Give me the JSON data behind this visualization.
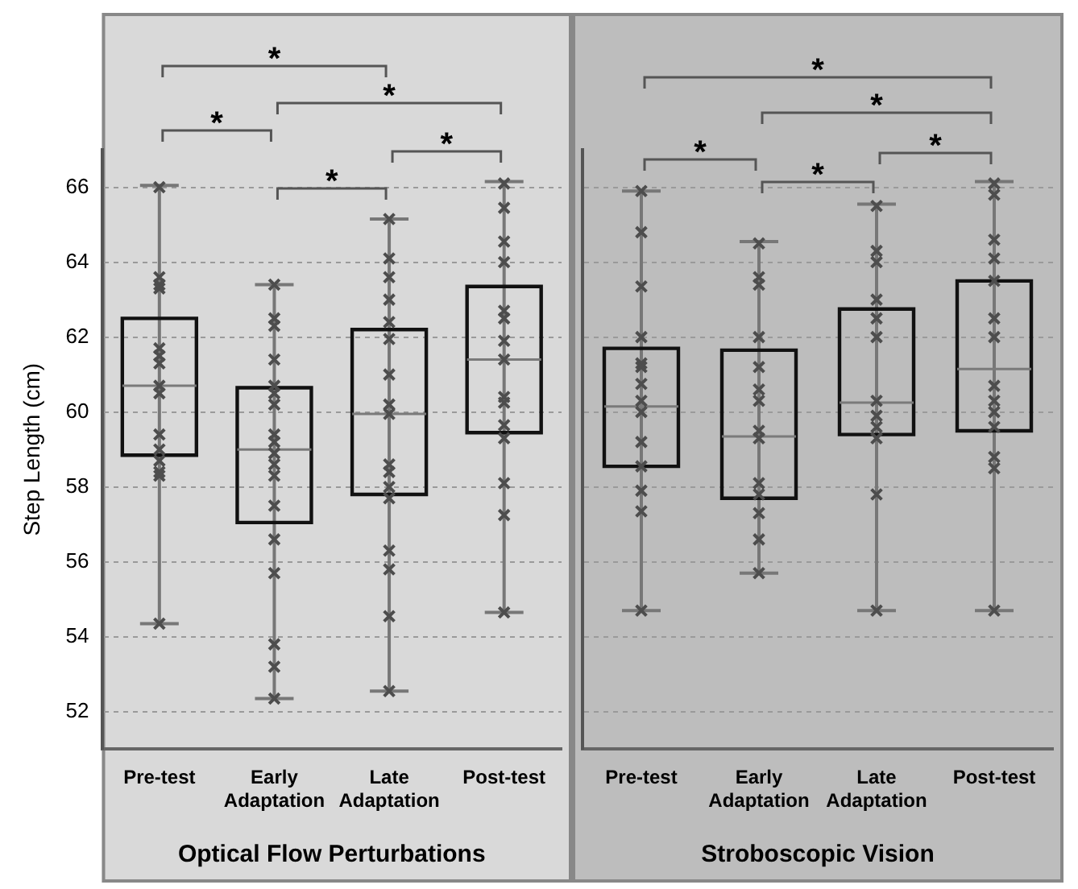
{
  "chart_data": [
    {
      "type": "box",
      "categories": [
        "Pre-test",
        "Early Adaptation",
        "Late Adaptation",
        "Post-test"
      ],
      "xlabel": "Optical Flow Perturbations",
      "ylabel": "Step Length (cm)",
      "ylim": [
        51,
        67
      ],
      "yticks": [
        52,
        54,
        56,
        58,
        60,
        62,
        64,
        66
      ],
      "grid": "y",
      "marker": "cross",
      "annotations": [
        "*",
        "*",
        "*",
        "*",
        "*"
      ],
      "boxes": [
        {
          "low": 54.35,
          "q1": 58.85,
          "median": 60.7,
          "q3": 62.5,
          "high": 66.05
        },
        {
          "low": 52.35,
          "q1": 57.05,
          "median": 59.0,
          "q3": 60.65,
          "high": 63.4
        },
        {
          "low": 52.55,
          "q1": 57.8,
          "median": 59.95,
          "q3": 62.2,
          "high": 65.15
        },
        {
          "low": 54.65,
          "q1": 59.45,
          "median": 61.4,
          "q3": 63.35,
          "high": 66.15
        }
      ],
      "series": [
        {
          "type": "scatter",
          "color": "#4d4d4d",
          "x": [
            "Pre-test",
            "Pre-test",
            "Pre-test",
            "Pre-test",
            "Pre-test",
            "Pre-test",
            "Pre-test",
            "Pre-test",
            "Pre-test",
            "Pre-test",
            "Pre-test",
            "Pre-test",
            "Pre-test",
            "Pre-test",
            "Pre-test",
            "Early Adaptation",
            "Early Adaptation",
            "Early Adaptation",
            "Early Adaptation",
            "Early Adaptation",
            "Early Adaptation",
            "Early Adaptation",
            "Early Adaptation",
            "Early Adaptation",
            "Early Adaptation",
            "Early Adaptation",
            "Early Adaptation",
            "Early Adaptation",
            "Early Adaptation",
            "Early Adaptation",
            "Early Adaptation",
            "Early Adaptation",
            "Early Adaptation",
            "Late Adaptation",
            "Late Adaptation",
            "Late Adaptation",
            "Late Adaptation",
            "Late Adaptation",
            "Late Adaptation",
            "Late Adaptation",
            "Late Adaptation",
            "Late Adaptation",
            "Late Adaptation",
            "Late Adaptation",
            "Late Adaptation",
            "Late Adaptation",
            "Late Adaptation",
            "Late Adaptation",
            "Late Adaptation",
            "Late Adaptation",
            "Post-test",
            "Post-test",
            "Post-test",
            "Post-test",
            "Post-test",
            "Post-test",
            "Post-test",
            "Post-test",
            "Post-test",
            "Post-test",
            "Post-test",
            "Post-test",
            "Post-test",
            "Post-test",
            "Post-test"
          ],
          "values": [
            66.0,
            63.6,
            63.4,
            63.3,
            61.7,
            61.5,
            61.3,
            60.7,
            60.5,
            59.4,
            59.0,
            58.7,
            58.4,
            58.3,
            54.35,
            63.4,
            62.5,
            62.3,
            61.4,
            60.7,
            60.5,
            60.2,
            59.4,
            59.2,
            58.9,
            58.6,
            58.3,
            57.5,
            56.6,
            55.7,
            53.8,
            53.2,
            52.35,
            65.15,
            64.1,
            63.6,
            63.0,
            62.4,
            61.95,
            61.0,
            60.2,
            59.95,
            58.6,
            58.4,
            58.0,
            57.7,
            56.3,
            55.8,
            54.55,
            52.55,
            66.1,
            65.45,
            64.55,
            64.0,
            62.7,
            62.5,
            61.9,
            61.4,
            60.4,
            60.25,
            59.65,
            59.3,
            58.1,
            57.25,
            54.65
          ]
        }
      ]
    },
    {
      "type": "box",
      "categories": [
        "Pre-test",
        "Early Adaptation",
        "Late Adaptation",
        "Post-test"
      ],
      "xlabel": "Stroboscopic Vision",
      "ylim": [
        51,
        67
      ],
      "yticks": [
        52,
        54,
        56,
        58,
        60,
        62,
        64,
        66
      ],
      "tick_labels": "x",
      "grid": "y",
      "marker": "cross",
      "annotations": [
        "*",
        "*",
        "*",
        "*",
        "*"
      ],
      "boxes": [
        {
          "low": 54.7,
          "q1": 58.55,
          "median": 60.15,
          "q3": 61.7,
          "high": 65.9
        },
        {
          "low": 55.7,
          "q1": 57.7,
          "median": 59.35,
          "q3": 61.65,
          "high": 64.55
        },
        {
          "low": 54.7,
          "q1": 59.4,
          "median": 60.25,
          "q3": 62.75,
          "high": 65.55
        },
        {
          "low": 54.7,
          "q1": 59.5,
          "median": 61.15,
          "q3": 63.5,
          "high": 66.15
        }
      ],
      "series": [
        {
          "type": "scatter",
          "color": "#4d4d4d",
          "x": [
            "Pre-test",
            "Pre-test",
            "Pre-test",
            "Pre-test",
            "Pre-test",
            "Pre-test",
            "Pre-test",
            "Pre-test",
            "Pre-test",
            "Pre-test",
            "Pre-test",
            "Pre-test",
            "Pre-test",
            "Pre-test",
            "Early Adaptation",
            "Early Adaptation",
            "Early Adaptation",
            "Early Adaptation",
            "Early Adaptation",
            "Early Adaptation",
            "Early Adaptation",
            "Early Adaptation",
            "Early Adaptation",
            "Early Adaptation",
            "Early Adaptation",
            "Early Adaptation",
            "Early Adaptation",
            "Early Adaptation",
            "Late Adaptation",
            "Late Adaptation",
            "Late Adaptation",
            "Late Adaptation",
            "Late Adaptation",
            "Late Adaptation",
            "Late Adaptation",
            "Late Adaptation",
            "Late Adaptation",
            "Late Adaptation",
            "Late Adaptation",
            "Late Adaptation",
            "Post-test",
            "Post-test",
            "Post-test",
            "Post-test",
            "Post-test",
            "Post-test",
            "Post-test",
            "Post-test",
            "Post-test",
            "Post-test",
            "Post-test",
            "Post-test",
            "Post-test",
            "Post-test"
          ],
          "values": [
            65.9,
            64.8,
            63.35,
            62.0,
            61.3,
            61.2,
            60.75,
            60.3,
            60.0,
            59.2,
            58.55,
            57.9,
            57.35,
            54.7,
            64.5,
            63.6,
            63.4,
            62.0,
            61.2,
            60.6,
            60.3,
            59.5,
            59.3,
            58.1,
            57.8,
            57.3,
            56.6,
            55.7,
            65.5,
            64.3,
            64.0,
            63.0,
            62.5,
            62.0,
            60.3,
            59.9,
            59.6,
            59.3,
            57.8,
            54.7,
            66.1,
            65.8,
            64.6,
            64.1,
            63.5,
            62.5,
            62.0,
            60.7,
            60.3,
            60.0,
            59.6,
            58.8,
            58.5,
            54.7
          ]
        }
      ]
    }
  ]
}
